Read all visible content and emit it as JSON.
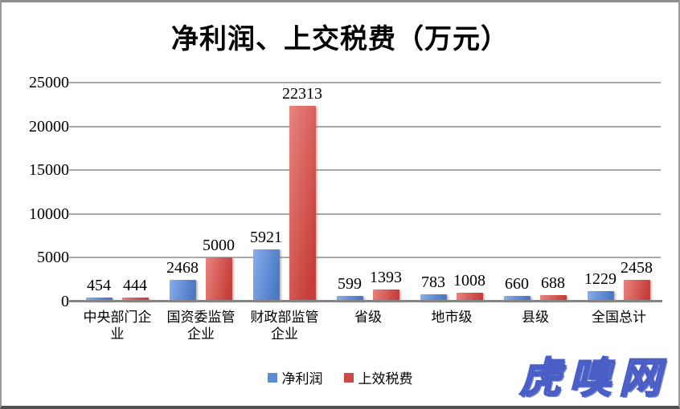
{
  "title": "净利润、上交税费（万元）",
  "watermark": "虎嗅网",
  "colors": {
    "grid": "#a8a8a8",
    "axis": "#858585",
    "series_blue_light": "#88ade9",
    "series_blue_dark": "#4b79c6",
    "series_red_light": "#e9847e",
    "series_red_dark": "#c73f3b",
    "legend_blue": "#5b8dd3",
    "legend_red": "#cb4a45",
    "watermark_blue": "#8b9ce6"
  },
  "legend": [
    {
      "label": "净利润",
      "color": "#5b8dd3"
    },
    {
      "label": "上效税费",
      "color": "#cb4a45"
    }
  ],
  "chart_data": {
    "type": "bar",
    "title": "净利润、上交税费（万元）",
    "categories": [
      "中央部门企业",
      "国资委监管企业",
      "财政部监管企业",
      "省级",
      "地市级",
      "县级",
      "全国总计"
    ],
    "series": [
      {
        "name": "净利润",
        "color_light": "#88ade9",
        "color_dark": "#4b79c6",
        "values": [
          454,
          2468,
          5921,
          599,
          783,
          660,
          1229
        ]
      },
      {
        "name": "上效税费",
        "color_light": "#e9847e",
        "color_dark": "#c73f3b",
        "values": [
          444,
          5000,
          22313,
          1393,
          1008,
          688,
          2458
        ]
      }
    ],
    "xlabel": "",
    "ylabel": "",
    "ylim": [
      0,
      25000
    ],
    "yticks": [
      0,
      5000,
      10000,
      15000,
      20000,
      25000
    ],
    "grid": true,
    "legend_position": "bottom",
    "data_labels": true
  }
}
